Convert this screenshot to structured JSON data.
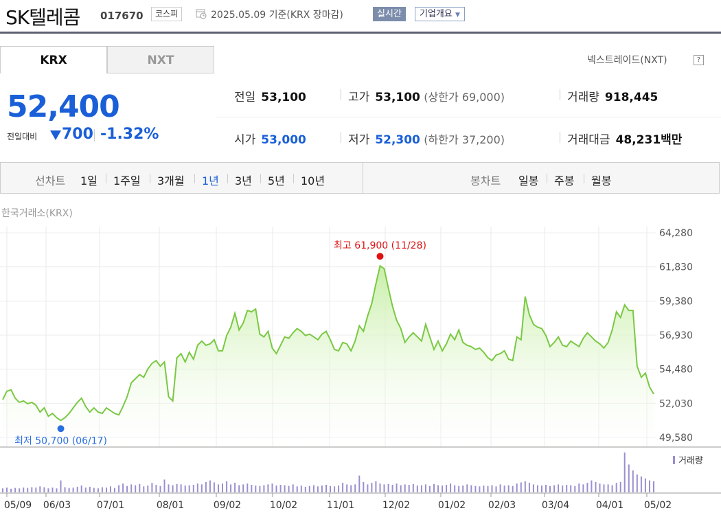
{
  "header": {
    "company_name": "SK텔레콤",
    "stock_code": "017670",
    "market": "코스피",
    "date_text": "2025.05.09  기준(KRX 장마감)",
    "realtime_label": "실시간",
    "company_info_label": "기업개요"
  },
  "tabs": [
    "KRX",
    "NXT"
  ],
  "nxt_link": "넥스트레이드(NXT)",
  "help": "?",
  "price": {
    "current": "52,400",
    "change_label": "전일대비",
    "change": "700",
    "change_pct": "-1.32%"
  },
  "stats": {
    "prev_close_label": "전일",
    "prev_close": "53,100",
    "high_label": "고가",
    "high": "53,100",
    "upper_limit": "(상한가 69,000)",
    "volume_label": "거래량",
    "volume": "918,445",
    "open_label": "시가",
    "open": "53,000",
    "low_label": "저가",
    "low": "52,300",
    "lower_limit": "(하한가 37,200)",
    "amount_label": "거래대금",
    "amount": "48,231",
    "amount_unit": "백만"
  },
  "period": {
    "line_label": "선차트",
    "line_options": [
      "1일",
      "1주일",
      "3개월",
      "1년",
      "3년",
      "5년",
      "10년"
    ],
    "selected": "1년",
    "candle_label": "봉차트",
    "candle_options": [
      "일봉",
      "주봉",
      "월봉"
    ]
  },
  "chart_data": {
    "type": "area",
    "title": "한국거래소(KRX)",
    "ylim": [
      49580,
      64280
    ],
    "y_ticks": [
      "64,280",
      "61,830",
      "59,380",
      "56,930",
      "54,480",
      "52,030",
      "49,580"
    ],
    "x_ticks": [
      "05/09",
      "06/03",
      "07/01",
      "08/01",
      "09/02",
      "10/02",
      "11/01",
      "12/02",
      "01/02",
      "02/03",
      "03/04",
      "04/01",
      "05/02"
    ],
    "high_annotation": "최고 61,900 (11/28)",
    "low_annotation": "최저 50,700 (06/17)",
    "volume_legend": "거래량",
    "colors": {
      "line": "#7ac843",
      "fill_top": "#c8efa8",
      "high": "#e01010",
      "low": "#2a6fe0",
      "volume": "#9a8fcf"
    },
    "series": [
      {
        "values": [
          52300,
          52900,
          53000,
          52400,
          52100,
          52200,
          52000,
          52100,
          51900,
          51400,
          51700,
          51100,
          51300,
          51000,
          50800,
          51000,
          51300,
          51700,
          52100,
          52400,
          51800,
          51400,
          51700,
          51400,
          51300,
          51700,
          51500,
          51300,
          51200,
          51800,
          52500,
          53500,
          53800,
          54100,
          53900,
          54500,
          54900,
          55100,
          54700,
          55000,
          52500,
          52200,
          55300,
          55600,
          55000,
          55700,
          55200,
          56200,
          56500,
          56200,
          56300,
          56600,
          55800,
          55800,
          56900,
          57500,
          58500,
          57300,
          57800,
          58700,
          58600,
          58800,
          57000,
          56800,
          57200,
          56000,
          55600,
          56200,
          56800,
          56700,
          57100,
          57400,
          57200,
          56900,
          57000,
          56800,
          56600,
          57000,
          57200,
          56600,
          55900,
          55800,
          56400,
          56300,
          55800,
          56500,
          57600,
          57200,
          58300,
          59200,
          60600,
          61900,
          61700,
          60300,
          59000,
          58000,
          57400,
          56400,
          56800,
          57100,
          56800,
          56500,
          57700,
          56800,
          55900,
          56500,
          55800,
          56300,
          57000,
          56600,
          57300,
          56400,
          56200,
          56100,
          55900,
          56000,
          55700,
          55300,
          55100,
          55500,
          55600,
          55800,
          55200,
          55100,
          56800,
          56600,
          59700,
          58400,
          57700,
          57500,
          57400,
          56900,
          56100,
          56400,
          56800,
          56200,
          56100,
          56500,
          56300,
          56100,
          56700,
          57100,
          56800,
          56500,
          56300,
          56000,
          56400,
          57300,
          58600,
          58200,
          59100,
          58700,
          58700,
          54700,
          53900,
          54200,
          53200,
          52700
        ]
      }
    ],
    "volume": [
      0.1,
      0.12,
      0.09,
      0.11,
      0.1,
      0.12,
      0.11,
      0.13,
      0.12,
      0.15,
      0.13,
      0.1,
      0.12,
      0.1,
      0.3,
      0.13,
      0.11,
      0.12,
      0.14,
      0.17,
      0.12,
      0.14,
      0.11,
      0.1,
      0.13,
      0.12,
      0.15,
      0.11,
      0.18,
      0.22,
      0.16,
      0.2,
      0.18,
      0.21,
      0.15,
      0.17,
      0.24,
      0.19,
      0.16,
      0.32,
      0.2,
      0.18,
      0.21,
      0.2,
      0.17,
      0.18,
      0.19,
      0.22,
      0.2,
      0.26,
      0.3,
      0.25,
      0.2,
      0.22,
      0.28,
      0.2,
      0.24,
      0.18,
      0.2,
      0.22,
      0.19,
      0.17,
      0.16,
      0.18,
      0.2,
      0.22,
      0.17,
      0.19,
      0.18,
      0.16,
      0.2,
      0.15,
      0.17,
      0.14,
      0.16,
      0.18,
      0.15,
      0.17,
      0.19,
      0.16,
      0.15,
      0.17,
      0.24,
      0.2,
      0.18,
      0.2,
      0.42,
      0.26,
      0.2,
      0.24,
      0.28,
      0.22,
      0.2,
      0.21,
      0.19,
      0.22,
      0.18,
      0.2,
      0.19,
      0.21,
      0.17,
      0.18,
      0.2,
      0.16,
      0.21,
      0.18,
      0.17,
      0.19,
      0.22,
      0.18,
      0.16,
      0.17,
      0.2,
      0.18,
      0.16,
      0.15,
      0.17,
      0.16,
      0.18,
      0.15,
      0.2,
      0.17,
      0.18,
      0.16,
      0.22,
      0.25,
      0.28,
      0.24,
      0.2,
      0.18,
      0.17,
      0.19,
      0.16,
      0.18,
      0.2,
      0.17,
      0.19,
      0.18,
      0.16,
      0.22,
      0.2,
      0.24,
      0.3,
      0.26,
      0.22,
      0.2,
      0.2,
      0.18,
      0.24,
      0.26,
      1.0,
      0.7,
      0.55,
      0.45,
      0.4,
      0.35,
      0.3,
      0.28
    ]
  }
}
